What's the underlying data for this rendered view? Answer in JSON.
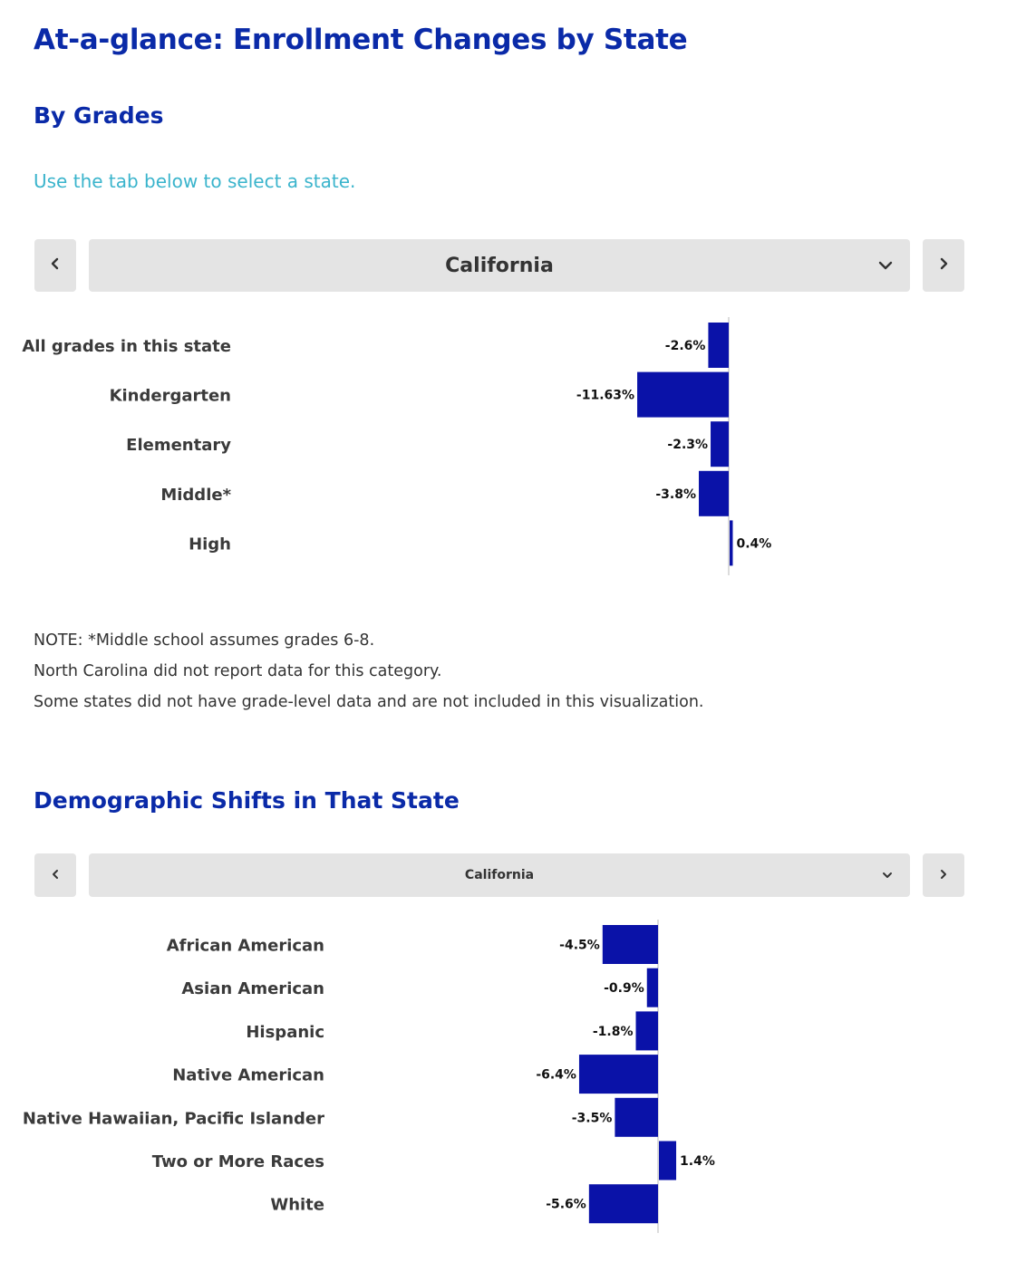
{
  "header": {
    "title": "At-a-glance: Enrollment Changes by State"
  },
  "grades_section": {
    "title": "By Grades",
    "instruction": "Use the tab below to select a state.",
    "selector": {
      "selected": "California",
      "prev_icon": "chevron-left-icon",
      "next_icon": "chevron-right-icon",
      "dropdown_icon": "chevron-down-icon"
    },
    "notes": [
      "NOTE:  *Middle school assumes grades 6-8.",
      "North Carolina did not report data for this category.",
      "Some states did not have grade-level data and are not included in this visualization."
    ]
  },
  "demographics_section": {
    "title": "Demographic Shifts in That State",
    "selector": {
      "selected": "California",
      "prev_icon": "chevron-left-icon",
      "next_icon": "chevron-right-icon",
      "dropdown_icon": "chevron-down-icon"
    }
  },
  "colors": {
    "title": "#0a2aa8",
    "instruction": "#3ab4cc",
    "bar": "#0a12a8",
    "selector_bg": "#e4e4e4",
    "text": "#333333"
  },
  "chart_data": [
    {
      "type": "bar",
      "orientation": "horizontal",
      "categories": [
        "All grades in this state",
        "Kindergarten",
        "Elementary",
        "Middle*",
        "High"
      ],
      "values": [
        -2.6,
        -11.63,
        -2.3,
        -3.8,
        0.4
      ],
      "value_labels": [
        "-2.6%",
        "-11.63%",
        "-2.3%",
        "-3.8%",
        "0.4%"
      ],
      "unit": "%"
    },
    {
      "type": "bar",
      "orientation": "horizontal",
      "categories": [
        "African American",
        "Asian American",
        "Hispanic",
        "Native American",
        "Native Hawaiian, Pacific Islander",
        "Two or More Races",
        "White"
      ],
      "values": [
        -4.5,
        -0.9,
        -1.8,
        -6.4,
        -3.5,
        1.4,
        -5.6
      ],
      "value_labels": [
        "-4.5%",
        "-0.9%",
        "-1.8%",
        "-6.4%",
        "-3.5%",
        "1.4%",
        "-5.6%"
      ],
      "unit": "%"
    }
  ]
}
